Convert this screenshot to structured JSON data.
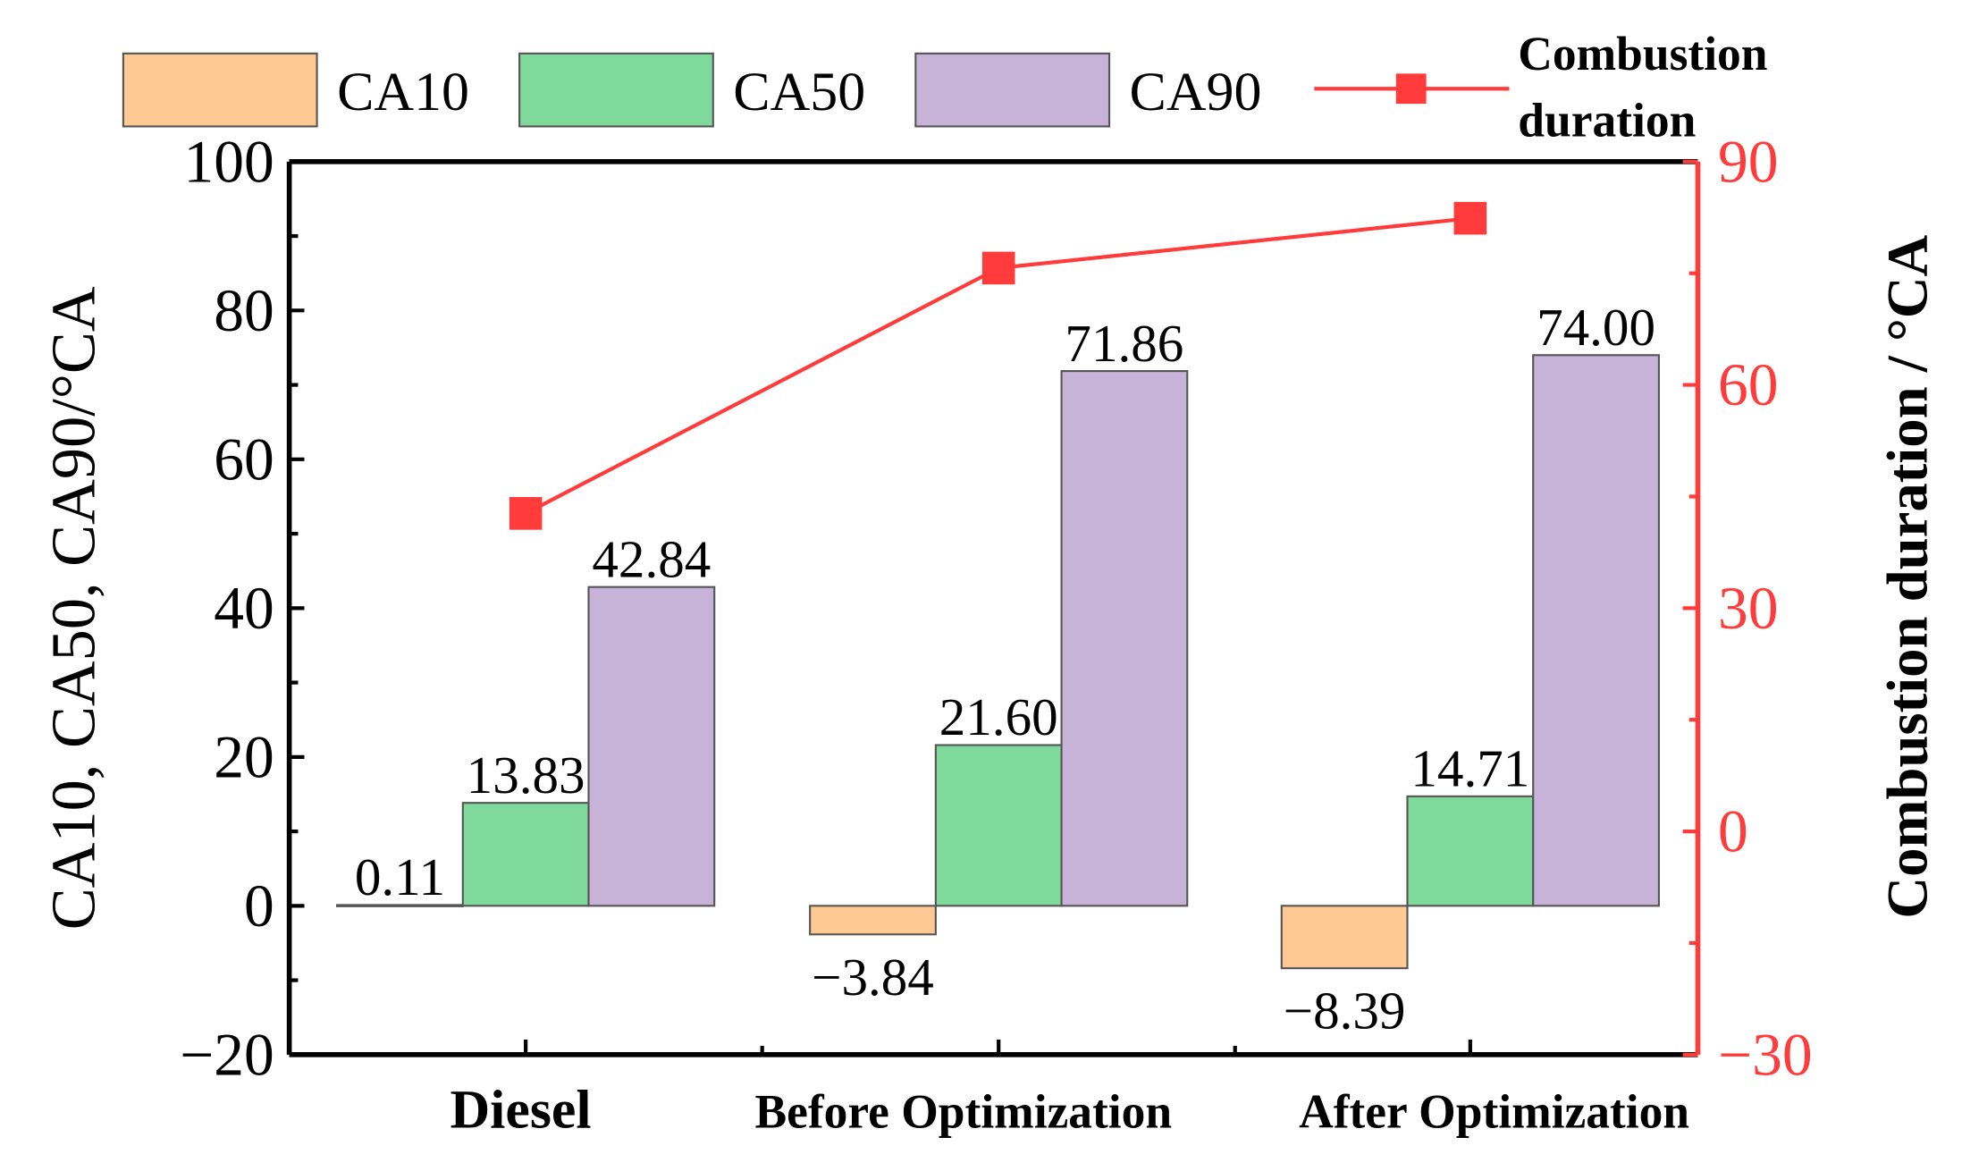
{
  "chart_data": {
    "type": "bar",
    "title": "",
    "categories": [
      "Diesel",
      "Before Optimization",
      "After Optimization"
    ],
    "series": [
      {
        "name": "CA10",
        "values": [
          0.11,
          -3.84,
          -8.39
        ],
        "color": "#FFC993",
        "labels": [
          "0.11",
          "−3.84",
          "−8.39"
        ]
      },
      {
        "name": "CA50",
        "values": [
          13.83,
          21.6,
          14.71
        ],
        "color": "#7FD99A",
        "labels": [
          "13.83",
          "21.60",
          "14.71"
        ]
      },
      {
        "name": "CA90",
        "values": [
          42.84,
          71.86,
          74.0
        ],
        "color": "#C8B3D8",
        "labels": [
          "42.84",
          "71.86",
          "74.00"
        ]
      }
    ],
    "line_series": {
      "name": "Combustion duration",
      "name_lines": [
        "Combustion",
        "duration"
      ],
      "values": [
        42.73,
        75.7,
        82.39
      ],
      "color": "#FF3B3B",
      "axis": "right"
    },
    "ylabel": "CA10, CA50, CA90/°CA",
    "ylim": [
      -20,
      100
    ],
    "yticks": [
      "−20",
      "0",
      "20",
      "40",
      "60",
      "80",
      "100"
    ],
    "ylabel_right": "Combustion duration / °CA",
    "ylim_right": [
      -30,
      90
    ],
    "yticks_right": [
      "−30",
      "0",
      "30",
      "60",
      "90"
    ],
    "xlabel": "",
    "grid": false,
    "legend": "top"
  }
}
